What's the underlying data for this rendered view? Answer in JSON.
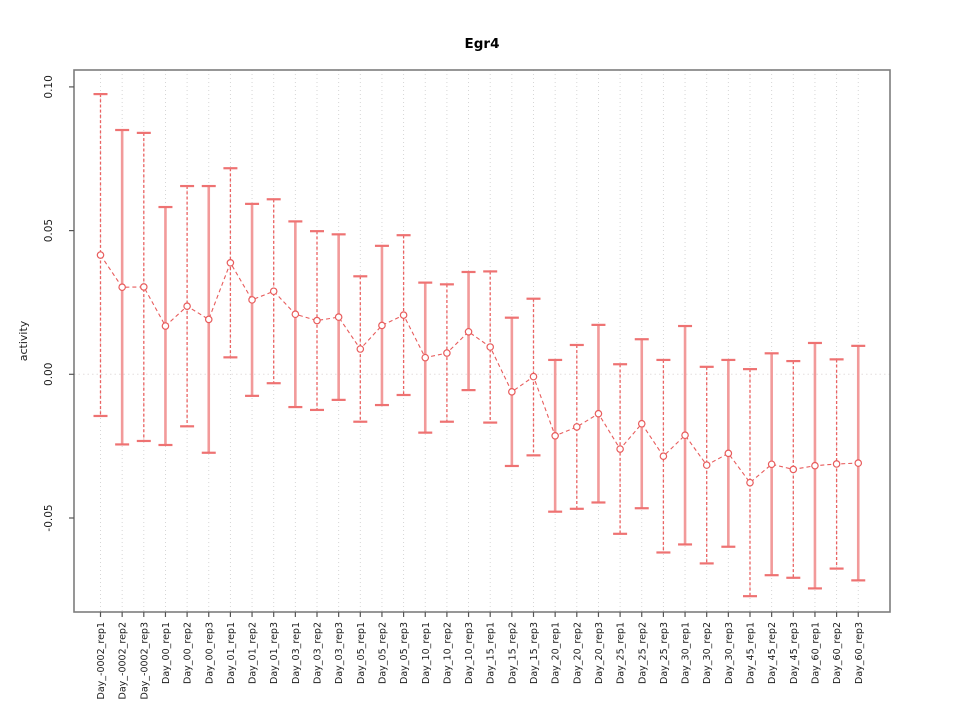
{
  "title": "Egr4",
  "chart_data": {
    "type": "line",
    "subtype": "points-with-error-bars",
    "title": "Egr4",
    "xlabel": "",
    "ylabel": "activity",
    "ylim": [
      -0.082,
      0.106
    ],
    "yticks": [
      0.1,
      0.05,
      0.0,
      -0.05
    ],
    "ytick_labels": [
      "0.10",
      "0.05",
      "0.00",
      "-0.05"
    ],
    "grid": "vertical-dotted-per-category, dotted-zero-line",
    "legend_position": "none",
    "categories": [
      "Day_-0002_rep1",
      "Day_-0002_rep2",
      "Day_-0002_rep3",
      "Day_00_rep1",
      "Day_00_rep2",
      "Day_00_rep3",
      "Day_01_rep1",
      "Day_01_rep2",
      "Day_01_rep3",
      "Day_03_rep1",
      "Day_03_rep2",
      "Day_03_rep3",
      "Day_05_rep1",
      "Day_05_rep2",
      "Day_05_rep3",
      "Day_10_rep1",
      "Day_10_rep2",
      "Day_10_rep3",
      "Day_15_rep1",
      "Day_15_rep2",
      "Day_15_rep3",
      "Day_20_rep1",
      "Day_20_rep2",
      "Day_20_rep3",
      "Day_25_rep1",
      "Day_25_rep2",
      "Day_25_rep3",
      "Day_30_rep1",
      "Day_30_rep2",
      "Day_30_rep3",
      "Day_45_rep1",
      "Day_45_rep2",
      "Day_45_rep3",
      "Day_60_rep1",
      "Day_60_rep2",
      "Day_60_rep3"
    ],
    "series": [
      {
        "name": "activity",
        "values": [
          0.0415,
          0.0303,
          0.0304,
          0.0168,
          0.0237,
          0.0191,
          0.0388,
          0.0259,
          0.0289,
          0.0209,
          0.0187,
          0.0199,
          0.0088,
          0.017,
          0.0206,
          0.0058,
          0.0074,
          0.0148,
          0.0095,
          -0.0061,
          -0.0008,
          -0.0214,
          -0.0183,
          -0.0137,
          -0.026,
          -0.0172,
          -0.0285,
          -0.0212,
          -0.0316,
          -0.0275,
          -0.0377,
          -0.0313,
          -0.0331,
          -0.0318,
          -0.0312,
          -0.0309
        ],
        "error_upper": [
          0.0975,
          0.085,
          0.084,
          0.0582,
          0.0655,
          0.0655,
          0.0717,
          0.0593,
          0.0609,
          0.0532,
          0.0498,
          0.0487,
          0.0341,
          0.0447,
          0.0484,
          0.0319,
          0.0313,
          0.0356,
          0.0358,
          0.0197,
          0.0263,
          0.005,
          0.0102,
          0.0172,
          0.0035,
          0.0122,
          0.005,
          0.0168,
          0.0026,
          0.005,
          0.0018,
          0.0073,
          0.0046,
          0.0109,
          0.0052,
          0.0099
        ],
        "error_lower": [
          -0.0145,
          -0.0244,
          -0.0232,
          -0.0246,
          -0.0181,
          -0.0273,
          0.0059,
          -0.0075,
          -0.0031,
          -0.0114,
          -0.0124,
          -0.0089,
          -0.0165,
          -0.0107,
          -0.0072,
          -0.0203,
          -0.0165,
          -0.0055,
          -0.0168,
          -0.0319,
          -0.0282,
          -0.0478,
          -0.0468,
          -0.0446,
          -0.0555,
          -0.0466,
          -0.062,
          -0.0592,
          -0.0658,
          -0.06,
          -0.0772,
          -0.0699,
          -0.0708,
          -0.0745,
          -0.0676,
          -0.0717
        ]
      }
    ],
    "colors": {
      "point_stroke": "#e85c5c",
      "segment_line": "#e85c5c",
      "errorbar_solid": "#f29a9a",
      "errorbar_dashed": "#ea6262",
      "errorbar_cap": "#ee7272",
      "gridline": "#d2d2d2",
      "zero_line": "#e3dede",
      "axis_box": "#7d7d7d",
      "tick": "#555555",
      "label_text": "#1a1a1a"
    }
  }
}
